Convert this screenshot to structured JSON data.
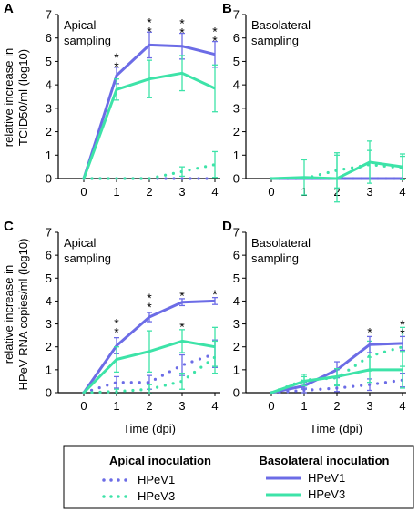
{
  "figure": {
    "ylabel_top": [
      "relative increase in",
      "TCID50/ml (log10)"
    ],
    "ylabel_bottom": [
      "relative increase in",
      "HPeV RNA copies/ml (log10)"
    ],
    "xlabel": "Time (dpi)"
  },
  "legend": {
    "apical_title": "Apical inoculation",
    "basolateral_title": "Basolateral inoculation",
    "apical_items": [
      "HPeV1",
      "HPeV3"
    ],
    "basolateral_items": [
      "HPeV1",
      "HPeV3"
    ]
  },
  "colors": {
    "hpev1": "#6c6ce6",
    "hpev3": "#3de3a8"
  },
  "chart_data": [
    {
      "type": "line",
      "panel_letter": "A",
      "title": "Apical sampling",
      "x": [
        0,
        1,
        2,
        3,
        4
      ],
      "ylim": [
        0,
        7
      ],
      "yticks": [
        0,
        1,
        2,
        3,
        4,
        5,
        6,
        7
      ],
      "series": [
        {
          "name": "HPeV1",
          "inoculation": "basolateral",
          "style": "solid",
          "color": "#6c6ce6",
          "values": [
            0,
            4.4,
            5.7,
            5.65,
            5.3
          ],
          "err": [
            0,
            0.35,
            0.55,
            0.55,
            0.55
          ]
        },
        {
          "name": "HPeV3",
          "inoculation": "basolateral",
          "style": "solid",
          "color": "#3de3a8",
          "values": [
            0,
            3.8,
            4.25,
            4.5,
            3.85
          ],
          "err": [
            0,
            0.45,
            0.8,
            0.75,
            1.0
          ]
        },
        {
          "name": "HPeV1",
          "inoculation": "apical",
          "style": "dotted",
          "color": "#6c6ce6",
          "values": [
            0,
            0,
            0,
            0,
            0
          ],
          "err": [
            0,
            0,
            0,
            0,
            0
          ]
        },
        {
          "name": "HPeV3",
          "inoculation": "apical",
          "style": "dotted",
          "color": "#3de3a8",
          "values": [
            0,
            0,
            0,
            0.3,
            0.6
          ],
          "err": [
            0,
            0,
            0,
            0.2,
            0.55
          ]
        }
      ],
      "significance": [
        {
          "x": 1,
          "y": 4.75,
          "marks": "**"
        },
        {
          "x": 2,
          "y": 6.25,
          "marks": "**"
        },
        {
          "x": 3,
          "y": 6.2,
          "marks": "**"
        },
        {
          "x": 4,
          "y": 5.85,
          "marks": "**"
        }
      ]
    },
    {
      "type": "line",
      "panel_letter": "B",
      "title": "Basolateral sampling",
      "x": [
        0,
        1,
        2,
        3,
        4
      ],
      "ylim": [
        0,
        7
      ],
      "yticks": [
        0,
        1,
        2,
        3,
        4,
        5,
        6,
        7
      ],
      "series": [
        {
          "name": "HPeV1",
          "inoculation": "basolateral",
          "style": "solid",
          "color": "#6c6ce6",
          "values": [
            0,
            0,
            0,
            0,
            0
          ],
          "err": [
            0,
            0,
            0,
            0,
            0
          ]
        },
        {
          "name": "HPeV3",
          "inoculation": "basolateral",
          "style": "solid",
          "color": "#3de3a8",
          "values": [
            0,
            0.05,
            0,
            0.7,
            0.5
          ],
          "err": [
            0,
            0.75,
            1.0,
            0.9,
            0.55
          ]
        },
        {
          "name": "HPeV1",
          "inoculation": "apical",
          "style": "dotted",
          "color": "#6c6ce6",
          "values": [
            0,
            0,
            0,
            0,
            0
          ],
          "err": [
            0,
            0,
            0,
            0,
            0
          ]
        },
        {
          "name": "HPeV3",
          "inoculation": "apical",
          "style": "dotted",
          "color": "#3de3a8",
          "values": [
            0,
            0,
            0.35,
            0.6,
            0.45
          ],
          "err": [
            0,
            0,
            0.75,
            0.6,
            0.5
          ]
        }
      ],
      "significance": []
    },
    {
      "type": "line",
      "panel_letter": "C",
      "title": "Apical sampling",
      "x": [
        0,
        1,
        2,
        3,
        4
      ],
      "ylim": [
        0,
        7
      ],
      "yticks": [
        0,
        1,
        2,
        3,
        4,
        5,
        6,
        7
      ],
      "series": [
        {
          "name": "HPeV1",
          "inoculation": "basolateral",
          "style": "solid",
          "color": "#6c6ce6",
          "values": [
            0,
            2.05,
            3.3,
            3.95,
            4.0
          ],
          "err": [
            0,
            0.35,
            0.2,
            0.15,
            0.15
          ]
        },
        {
          "name": "HPeV3",
          "inoculation": "basolateral",
          "style": "solid",
          "color": "#3de3a8",
          "values": [
            0,
            1.45,
            1.8,
            2.25,
            2.0
          ],
          "err": [
            0,
            0.55,
            0.9,
            0.5,
            0.85
          ]
        },
        {
          "name": "HPeV1",
          "inoculation": "apical",
          "style": "dotted",
          "color": "#6c6ce6",
          "values": [
            0,
            0.45,
            0.45,
            1.2,
            1.7
          ],
          "err": [
            0,
            0.25,
            0.3,
            0.45,
            0.6
          ]
        },
        {
          "name": "HPeV3",
          "inoculation": "apical",
          "style": "dotted",
          "color": "#3de3a8",
          "values": [
            0,
            0.05,
            0.15,
            0.5,
            1.55
          ],
          "err": [
            0,
            0.1,
            0.2,
            0.35,
            0.7
          ]
        }
      ],
      "significance": [
        {
          "x": 1,
          "y": 2.6,
          "marks": "**"
        },
        {
          "x": 2,
          "y": 3.7,
          "marks": "**"
        },
        {
          "x": 3,
          "y": 4.2,
          "marks": "*"
        },
        {
          "x": 3,
          "y": 2.85,
          "marks": "*"
        },
        {
          "x": 4,
          "y": 4.25,
          "marks": "*"
        }
      ]
    },
    {
      "type": "line",
      "panel_letter": "D",
      "title": "Basolateral sampling",
      "x": [
        0,
        1,
        2,
        3,
        4
      ],
      "ylim": [
        0,
        7
      ],
      "yticks": [
        0,
        1,
        2,
        3,
        4,
        5,
        6,
        7
      ],
      "series": [
        {
          "name": "HPeV1",
          "inoculation": "basolateral",
          "style": "solid",
          "color": "#6c6ce6",
          "values": [
            0,
            0.3,
            1.0,
            2.1,
            2.15
          ],
          "err": [
            0,
            0.15,
            0.35,
            0.35,
            0.3
          ]
        },
        {
          "name": "HPeV3",
          "inoculation": "basolateral",
          "style": "solid",
          "color": "#3de3a8",
          "values": [
            0,
            0.5,
            0.7,
            1.0,
            1.0
          ],
          "err": [
            0,
            0.2,
            0.35,
            0.55,
            0.8
          ]
        },
        {
          "name": "HPeV1",
          "inoculation": "apical",
          "style": "dotted",
          "color": "#6c6ce6",
          "values": [
            0,
            0.1,
            0.2,
            0.35,
            0.55
          ],
          "err": [
            0,
            0.1,
            0.15,
            0.25,
            0.3
          ]
        },
        {
          "name": "HPeV3",
          "inoculation": "apical",
          "style": "dotted",
          "color": "#3de3a8",
          "values": [
            0,
            0.55,
            0.65,
            1.6,
            2.0
          ],
          "err": [
            0,
            0.25,
            0.35,
            0.65,
            0.85
          ]
        }
      ],
      "significance": [
        {
          "x": 3,
          "y": 2.6,
          "marks": "*"
        },
        {
          "x": 4,
          "y": 2.55,
          "marks": "**"
        }
      ]
    }
  ]
}
